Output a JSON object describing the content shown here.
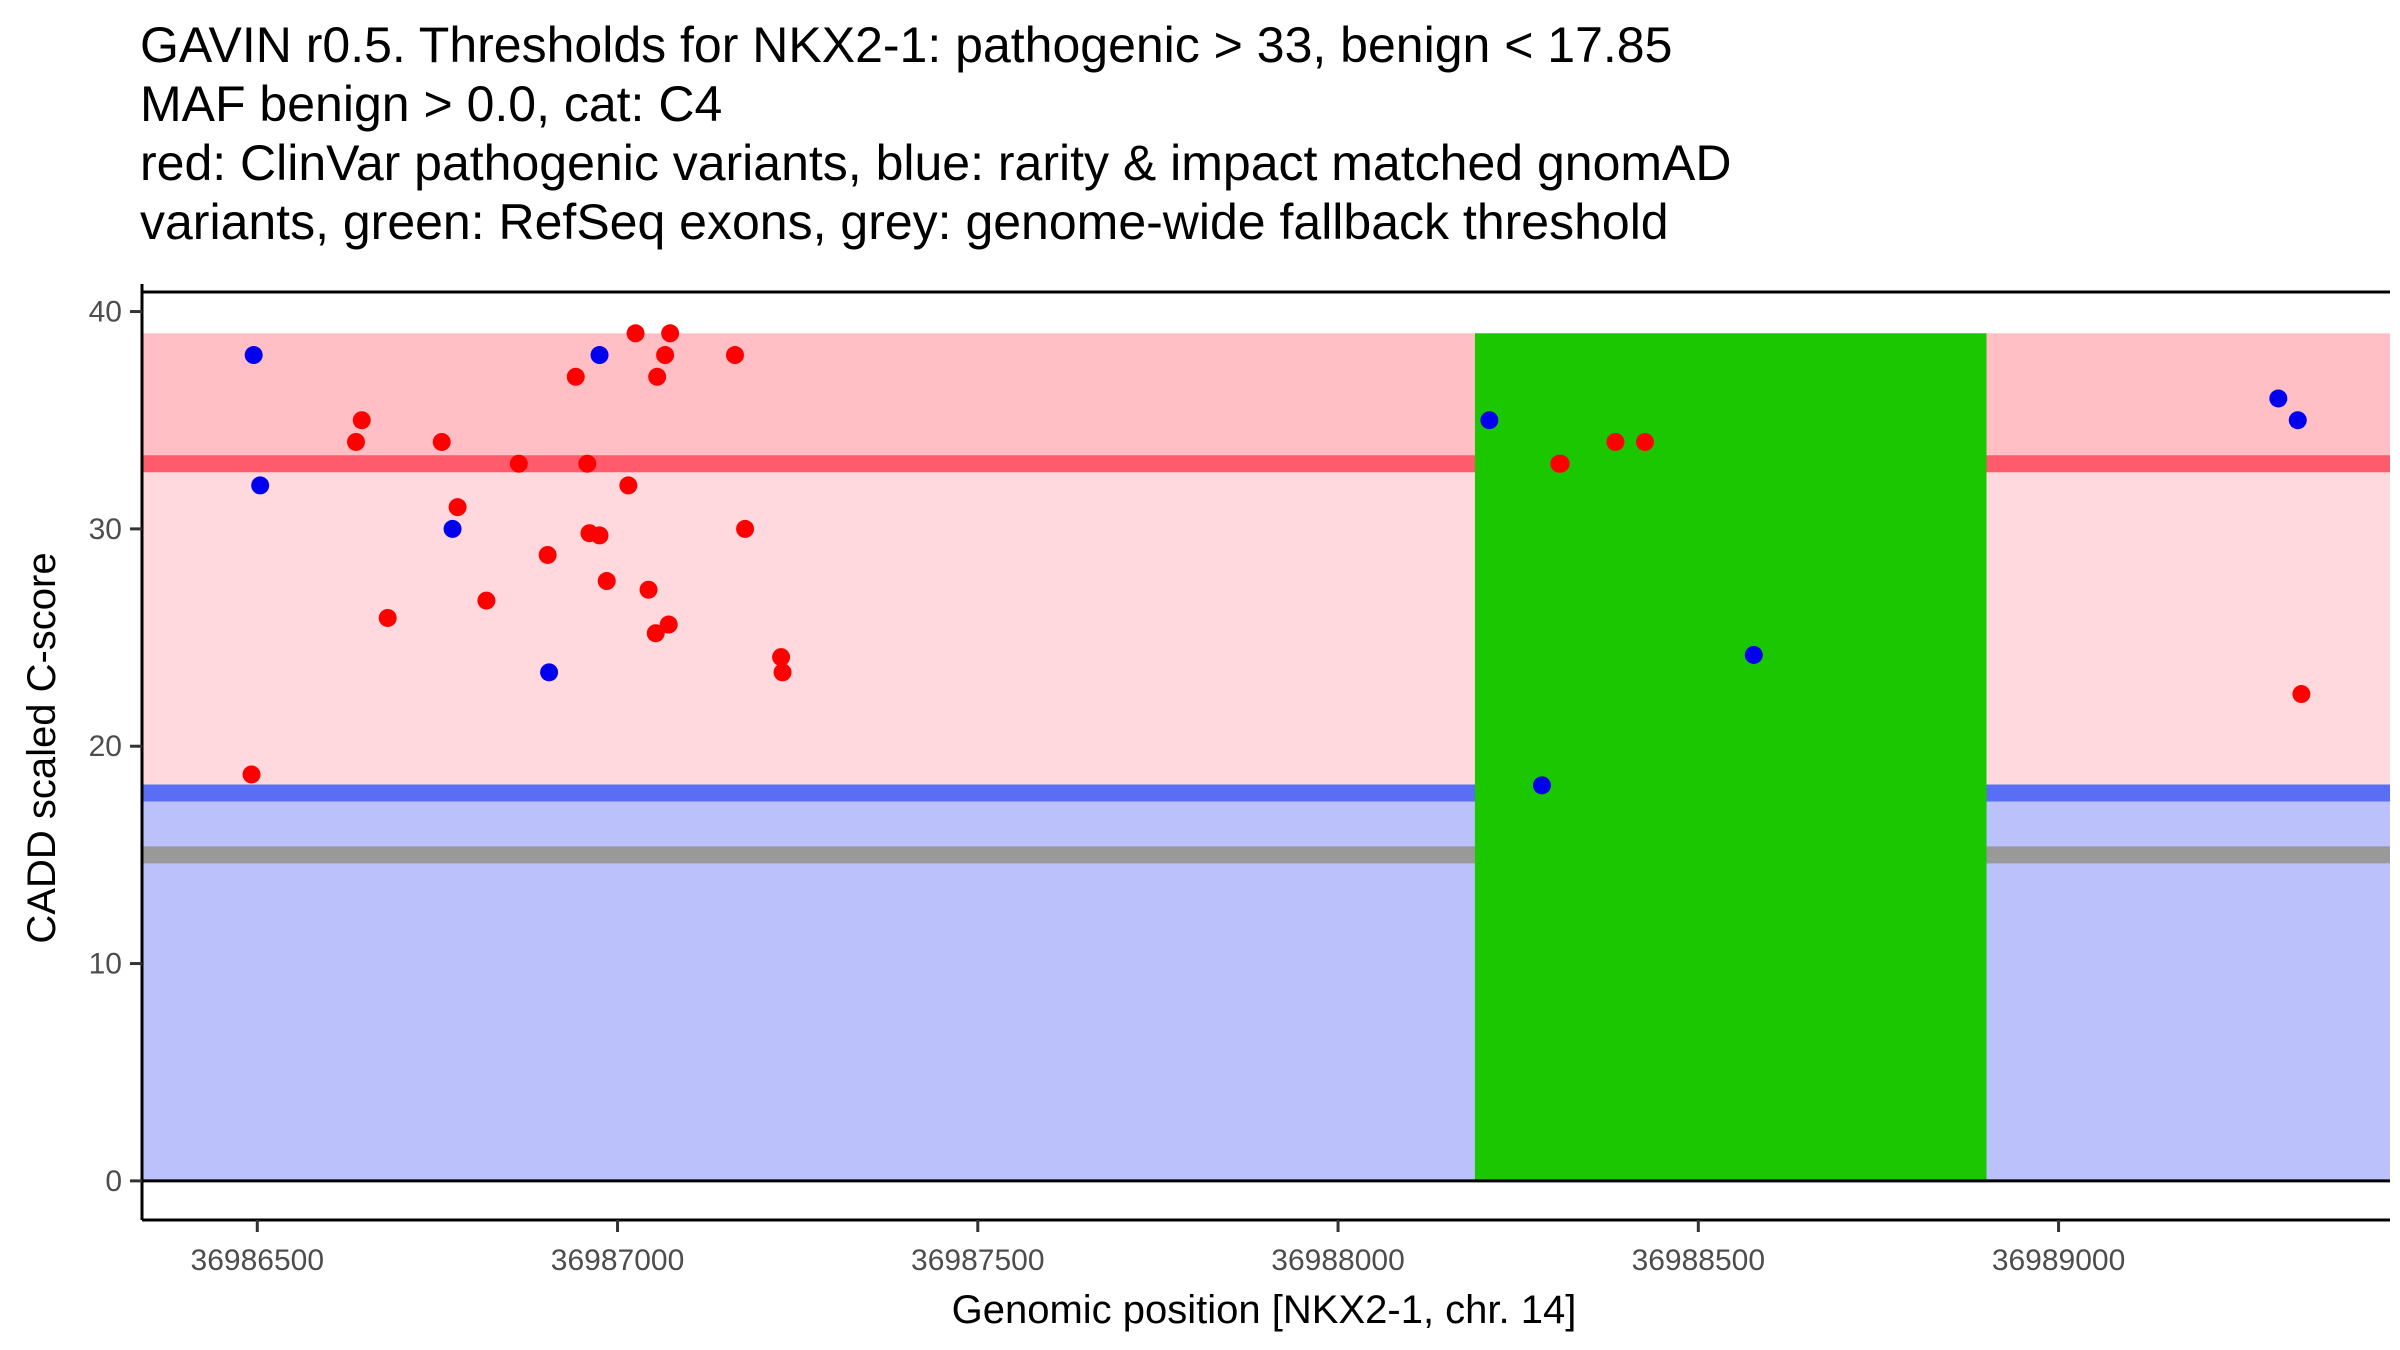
{
  "chart_data": {
    "type": "scatter",
    "title_lines": [
      "GAVIN r0.5. Thresholds for NKX2-1: pathogenic > 33, benign < 17.85",
      "MAF benign > 0.0, cat: C4",
      "red: ClinVar pathogenic variants, blue: rarity & impact matched gnomAD",
      "variants, green: RefSeq exons, grey: genome-wide fallback threshold"
    ],
    "xlabel": "Genomic position [NKX2-1, chr. 14]",
    "ylabel": "CADD scaled C-score",
    "xlim": [
      36986340,
      36989460
    ],
    "ylim": [
      -1.8,
      40.9
    ],
    "x_ticks": [
      36986500,
      36987000,
      36987500,
      36988000,
      36988500,
      36989000
    ],
    "y_ticks": [
      0,
      10,
      20,
      30,
      40
    ],
    "x_tick_labels": [
      "36986500",
      "36987000",
      "36987500",
      "36988000",
      "36988500",
      "36989000"
    ],
    "y_tick_labels": [
      "0",
      "10",
      "20",
      "30",
      "40"
    ],
    "thresholds": {
      "pathogenic": 33,
      "benign": 17.85,
      "fallback": 15,
      "max": 39,
      "colors": {
        "pathogenic_band": "#ffbfc4",
        "vus_band": "#ffd9dd",
        "benign_band": "#bbc1fb",
        "pathogenic_line": "#ff5b6c",
        "benign_line": "#5a6df5",
        "fallback_line": "#999999"
      }
    },
    "exons": [
      {
        "start": 36988190,
        "end": 36988900,
        "color": "#1bc700"
      }
    ],
    "series": [
      {
        "name": "ClinVar pathogenic variants",
        "color": "#ff0000",
        "points": [
          [
            36986492,
            18.7
          ],
          [
            36986637,
            34
          ],
          [
            36986645,
            35
          ],
          [
            36986681,
            25.9
          ],
          [
            36986756,
            34
          ],
          [
            36986778,
            31
          ],
          [
            36986818,
            26.7
          ],
          [
            36986863,
            33
          ],
          [
            36986903,
            28.8
          ],
          [
            36986942,
            37
          ],
          [
            36986958,
            33
          ],
          [
            36986961,
            29.8
          ],
          [
            36986975,
            29.7
          ],
          [
            36986985,
            27.6
          ],
          [
            36987015,
            32
          ],
          [
            36987025,
            39
          ],
          [
            36987043,
            27.2
          ],
          [
            36987053,
            25.2
          ],
          [
            36987055,
            37
          ],
          [
            36987066,
            38
          ],
          [
            36987071,
            25.6
          ],
          [
            36987073,
            39
          ],
          [
            36987163,
            38
          ],
          [
            36987177,
            30
          ],
          [
            36987227,
            24.1
          ],
          [
            36987229,
            23.4
          ],
          [
            36988307,
            33
          ],
          [
            36988309,
            33
          ],
          [
            36988385,
            34
          ],
          [
            36988426,
            34
          ],
          [
            36989337,
            22.4
          ]
        ]
      },
      {
        "name": "gnomAD matched variants",
        "color": "#0000ee",
        "points": [
          [
            36986495,
            38
          ],
          [
            36986504,
            32
          ],
          [
            36986771,
            30
          ],
          [
            36986905,
            23.4
          ],
          [
            36986975,
            38
          ],
          [
            36988210,
            35
          ],
          [
            36988283,
            18.2
          ],
          [
            36988577,
            24.2
          ],
          [
            36989305,
            36
          ],
          [
            36989332,
            35
          ]
        ]
      }
    ]
  }
}
